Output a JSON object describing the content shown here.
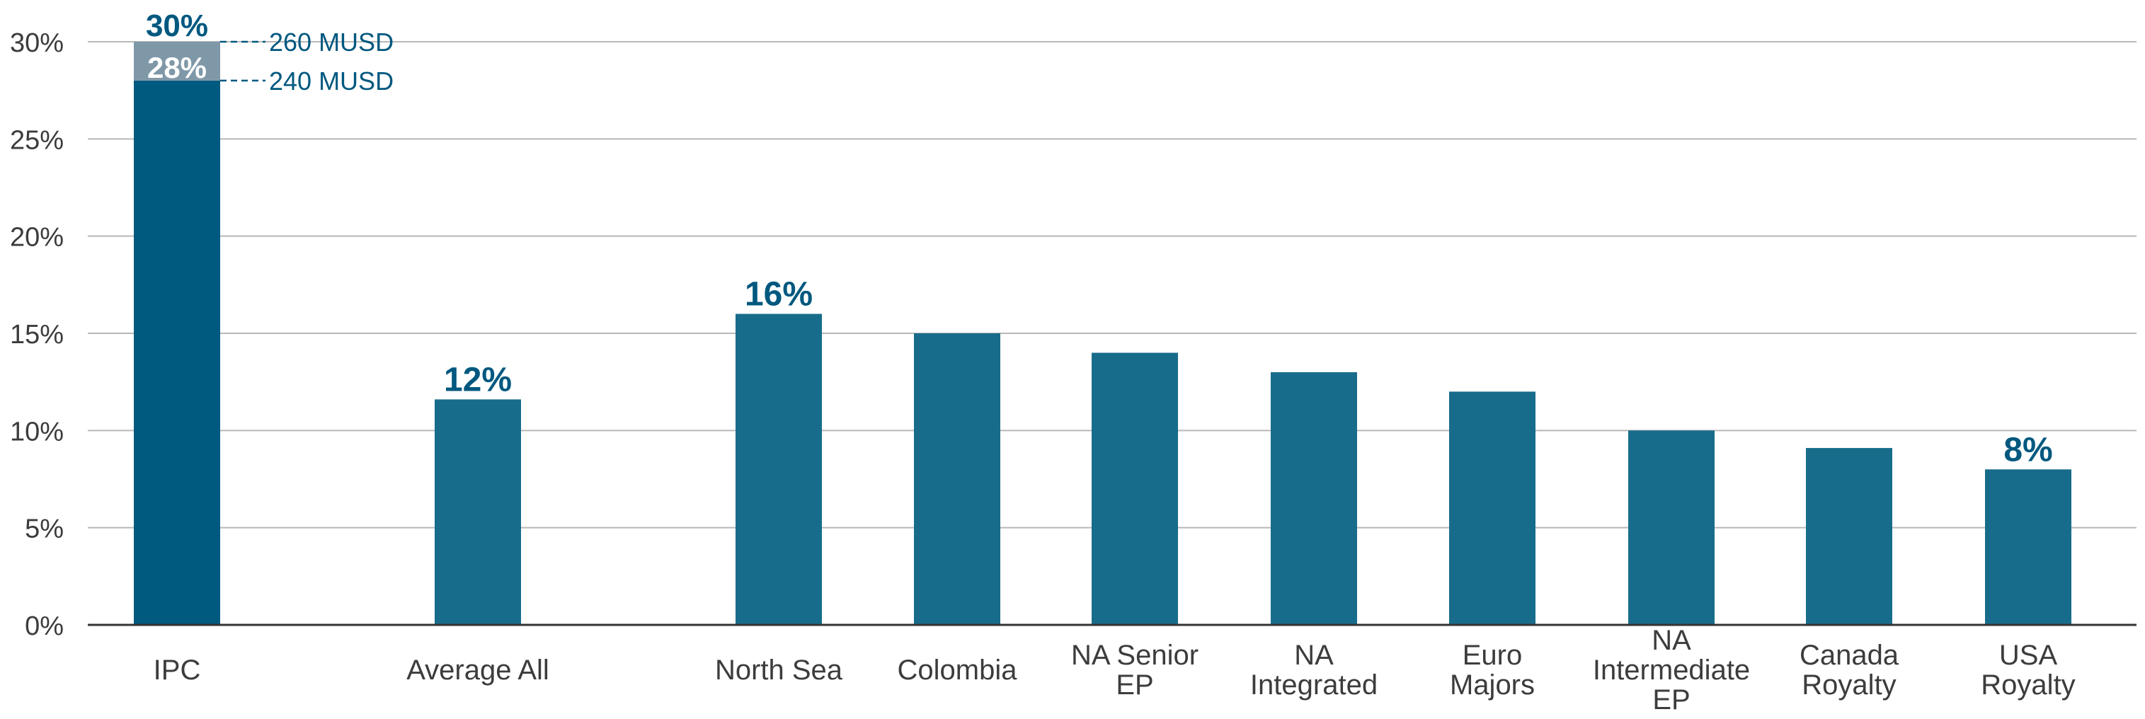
{
  "chart_data": {
    "type": "bar",
    "title": "",
    "xlabel": "",
    "ylabel": "",
    "ylim": [
      0,
      30
    ],
    "y_ticks": [
      "0%",
      "5%",
      "10%",
      "15%",
      "20%",
      "25%",
      "30%"
    ],
    "y_tick_values": [
      0,
      5,
      10,
      15,
      20,
      25,
      30
    ],
    "grid": "horizontal",
    "categories": [
      [
        "IPC"
      ],
      [
        "Average All"
      ],
      [
        "North Sea"
      ],
      [
        "Colombia"
      ],
      [
        "NA Senior",
        "EP"
      ],
      [
        "NA",
        "Integrated"
      ],
      [
        "Euro",
        "Majors"
      ],
      [
        "NA",
        "Intermediate",
        "EP"
      ],
      [
        "Canada",
        "Royalty"
      ],
      [
        "USA",
        "Royalty"
      ]
    ],
    "values": [
      28,
      11.6,
      16,
      15,
      14,
      13,
      12,
      10,
      9.1,
      8
    ],
    "value_labels": [
      "",
      "12%",
      "16%",
      "",
      "",
      "",
      "",
      "",
      "",
      "8%"
    ],
    "ipc_range": {
      "low": 28,
      "high": 30,
      "low_label": "28%",
      "high_label": "30%",
      "low_annotation": "240 MUSD",
      "high_annotation": "260 MUSD"
    },
    "colors": {
      "bar": "#186c8b",
      "ipc_bar": "#005a80",
      "ipc_range": "#7f98a8",
      "label": "#00587f",
      "axis_text": "#3c3c3c",
      "grid": "#b8b8b8",
      "axis": "#333333"
    }
  }
}
